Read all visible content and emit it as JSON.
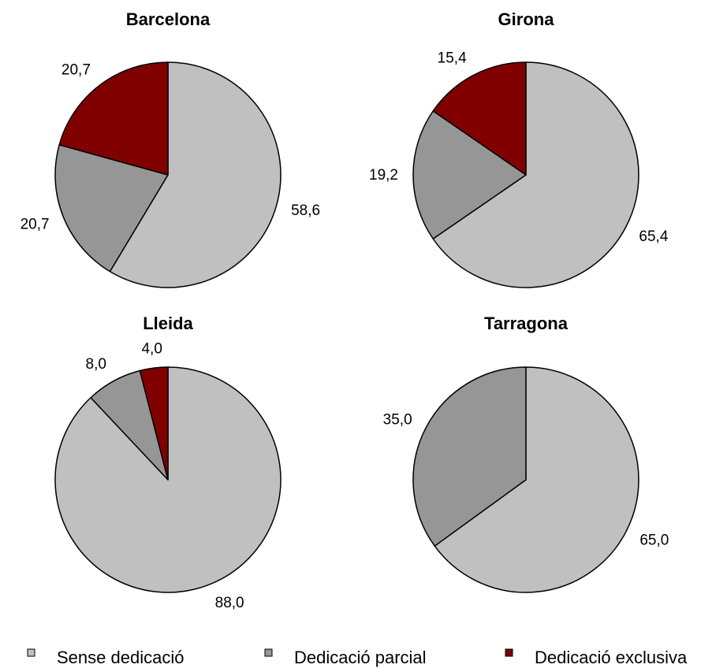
{
  "colors": {
    "Sense dedicació": "#c0c0c0",
    "Dedicació parcial": "#969696",
    "Dedicació exclusiva": "#800000"
  },
  "chart_data": [
    {
      "type": "pie",
      "title": "Barcelona",
      "slices": [
        {
          "label": "Sense dedicació",
          "value": 58.6,
          "text": "58,6"
        },
        {
          "label": "Dedicació parcial",
          "value": 20.7,
          "text": "20,7"
        },
        {
          "label": "Dedicació exclusiva",
          "value": 20.7,
          "text": "20,7"
        }
      ]
    },
    {
      "type": "pie",
      "title": "Girona",
      "slices": [
        {
          "label": "Sense dedicació",
          "value": 65.4,
          "text": "65,4"
        },
        {
          "label": "Dedicació parcial",
          "value": 19.2,
          "text": "19,2"
        },
        {
          "label": "Dedicació exclusiva",
          "value": 15.4,
          "text": "15,4"
        }
      ]
    },
    {
      "type": "pie",
      "title": "Lleida",
      "slices": [
        {
          "label": "Sense dedicació",
          "value": 88.0,
          "text": "88,0"
        },
        {
          "label": "Dedicació parcial",
          "value": 8.0,
          "text": "8,0"
        },
        {
          "label": "Dedicació exclusiva",
          "value": 4.0,
          "text": "4,0"
        }
      ]
    },
    {
      "type": "pie",
      "title": "Tarragona",
      "slices": [
        {
          "label": "Sense dedicació",
          "value": 65.0,
          "text": "65,0"
        },
        {
          "label": "Dedicació parcial",
          "value": 35.0,
          "text": "35,0"
        }
      ]
    }
  ],
  "legend": [
    {
      "label": "Sense dedicació"
    },
    {
      "label": "Dedicació parcial"
    },
    {
      "label": "Dedicació exclusiva"
    }
  ]
}
